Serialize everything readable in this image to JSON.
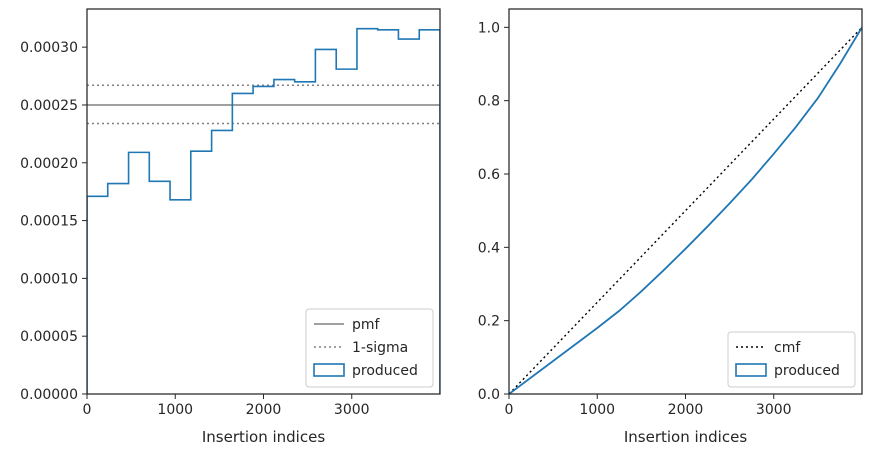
{
  "chart_data": [
    {
      "type": "step",
      "xlabel": "Insertion indices",
      "ylabel": "",
      "xlim": [
        0,
        4000
      ],
      "ylim": [
        0,
        0.000333
      ],
      "xticks": [
        0,
        1000,
        2000,
        3000
      ],
      "xtick_labels": [
        "0",
        "1000",
        "2000",
        "3000"
      ],
      "yticks": [
        0,
        5e-05,
        0.0001,
        0.00015,
        0.0002,
        0.00025,
        0.0003
      ],
      "ytick_labels": [
        "0.00000",
        "0.00005",
        "0.00010",
        "0.00015",
        "0.00020",
        "0.00025",
        "0.00030"
      ],
      "legend_position": "bottom-right",
      "hlines": [
        {
          "name": "pmf",
          "y": 0.00025,
          "color": "#808080",
          "style": "solid"
        },
        {
          "name": "1-sigma",
          "y": 0.000267,
          "color": "#808080",
          "style": "dotted"
        },
        {
          "name": "1-sigma",
          "y": 0.000234,
          "color": "#808080",
          "style": "dotted"
        }
      ],
      "histogram": {
        "name": "produced",
        "color": "#1f77b4",
        "bin_edges": [
          0,
          235,
          471,
          706,
          941,
          1176,
          1412,
          1647,
          1882,
          2118,
          2353,
          2588,
          2824,
          3059,
          3294,
          3529,
          3765,
          4000
        ],
        "values": [
          0.000171,
          0.000182,
          0.000209,
          0.000184,
          0.000168,
          0.00021,
          0.000228,
          0.00026,
          0.000266,
          0.000272,
          0.00027,
          0.000298,
          0.000281,
          0.000316,
          0.000315,
          0.000307,
          0.000315
        ]
      },
      "legend": [
        "pmf",
        "1-sigma",
        "produced"
      ]
    },
    {
      "type": "line",
      "xlabel": "Insertion indices",
      "ylabel": "",
      "xlim": [
        0,
        4000
      ],
      "ylim": [
        0,
        1.05
      ],
      "xticks": [
        0,
        1000,
        2000,
        3000
      ],
      "xtick_labels": [
        "0",
        "1000",
        "2000",
        "3000"
      ],
      "yticks": [
        0,
        0.2,
        0.4,
        0.6,
        0.8,
        1.0
      ],
      "ytick_labels": [
        "0.0",
        "0.2",
        "0.4",
        "0.6",
        "0.8",
        "1.0"
      ],
      "legend_position": "bottom-right",
      "series": [
        {
          "name": "cmf",
          "color": "#000000",
          "style": "dotted",
          "x": [
            0,
            4000
          ],
          "y": [
            0,
            1.0
          ]
        },
        {
          "name": "produced",
          "color": "#1f77b4",
          "style": "solid",
          "x": [
            0,
            250,
            500,
            750,
            1000,
            1250,
            1500,
            1750,
            2000,
            2250,
            2500,
            2750,
            3000,
            3250,
            3500,
            3750,
            4000
          ],
          "y": [
            0,
            0.045,
            0.09,
            0.135,
            0.18,
            0.227,
            0.28,
            0.337,
            0.396,
            0.457,
            0.52,
            0.585,
            0.655,
            0.728,
            0.807,
            0.9,
            1.0
          ]
        }
      ],
      "legend": [
        "cmf",
        "produced"
      ]
    }
  ]
}
